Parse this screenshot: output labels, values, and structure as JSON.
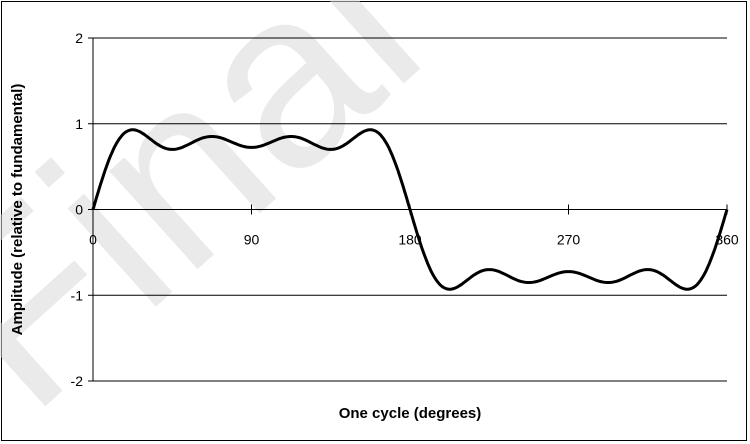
{
  "chart_data": {
    "type": "line",
    "title": "",
    "xlabel": "One cycle (degrees)",
    "ylabel": "Amplitude (relative to fundamental)",
    "xlim": [
      0,
      360
    ],
    "ylim": [
      -2,
      2
    ],
    "x_ticks": [
      0,
      90,
      180,
      270,
      360
    ],
    "y_ticks": [
      2,
      1,
      0,
      -1,
      -2
    ],
    "grid": "horizontal",
    "legend": "none",
    "watermark_text": "Final L",
    "colors": {
      "line": "#000000",
      "grid": "#000000",
      "watermark": "#d9d9d9"
    },
    "series": [
      {
        "description": "sum of odd harmonics 1,3,5,7 of a square wave",
        "harmonics": [
          1,
          3,
          5,
          7
        ],
        "x": [
          0,
          5,
          10,
          15,
          20,
          25,
          30,
          35,
          40,
          45,
          50,
          55,
          60,
          65,
          70,
          75,
          80,
          85,
          90,
          95,
          100,
          105,
          110,
          115,
          120,
          125,
          130,
          135,
          140,
          145,
          150,
          155,
          160,
          165,
          170,
          175,
          180,
          185,
          190,
          195,
          200,
          205,
          210,
          215,
          220,
          225,
          230,
          235,
          240,
          245,
          250,
          255,
          260,
          265,
          270,
          275,
          280,
          285,
          290,
          295,
          300,
          305,
          310,
          315,
          320,
          325,
          330,
          335,
          340,
          345,
          350,
          355,
          360
        ],
        "y": [
          0,
          0.5,
          0.78,
          0.8,
          0.76,
          0.75,
          0.8,
          0.83,
          0.78,
          0.7,
          0.68,
          0.76,
          0.88,
          0.94,
          0.9,
          0.8,
          0.7,
          0.68,
          0.7,
          0.68,
          0.7,
          0.8,
          0.9,
          0.94,
          0.88,
          0.76,
          0.68,
          0.7,
          0.78,
          0.83,
          0.8,
          0.75,
          0.76,
          0.8,
          0.78,
          0.5,
          0,
          -0.5,
          -0.78,
          -0.8,
          -0.76,
          -0.75,
          -0.8,
          -0.83,
          -0.78,
          -0.7,
          -0.68,
          -0.76,
          -0.88,
          -0.94,
          -0.9,
          -0.8,
          -0.7,
          -0.68,
          -0.7,
          -0.68,
          -0.7,
          -0.8,
          -0.9,
          -0.94,
          -0.88,
          -0.76,
          -0.68,
          -0.7,
          -0.78,
          -0.83,
          -0.8,
          -0.75,
          -0.76,
          -0.8,
          -0.78,
          -0.5,
          0
        ]
      }
    ]
  }
}
